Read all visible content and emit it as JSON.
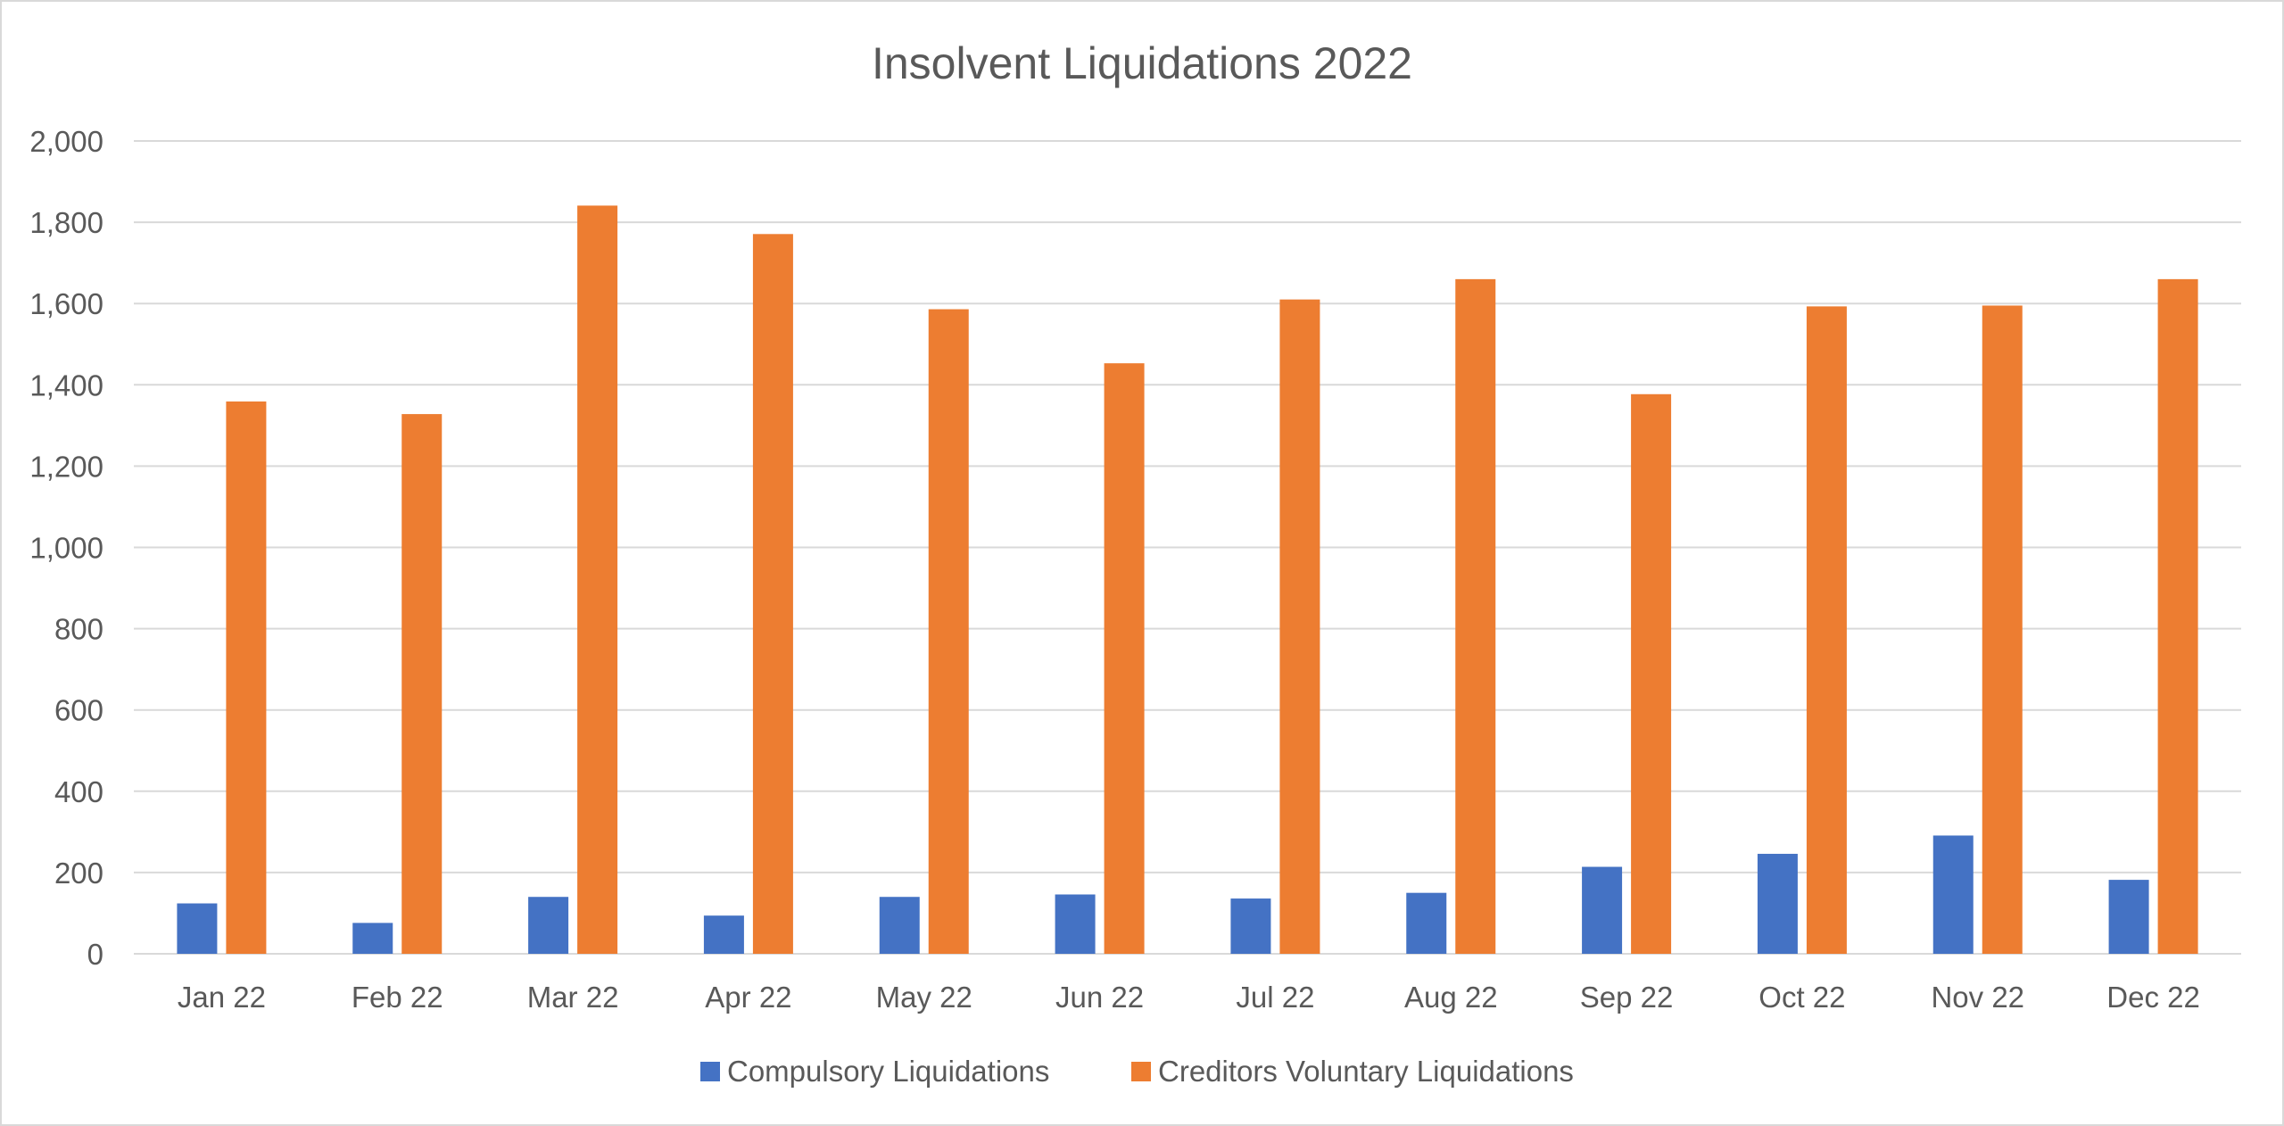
{
  "chart_data": {
    "type": "bar",
    "title": "Insolvent Liquidations 2022",
    "xlabel": "",
    "ylabel": "",
    "categories": [
      "Jan 22",
      "Feb 22",
      "Mar 22",
      "Apr 22",
      "May 22",
      "Jun 22",
      "Jul 22",
      "Aug 22",
      "Sep 22",
      "Oct 22",
      "Nov 22",
      "Dec 22"
    ],
    "series": [
      {
        "name": "Compulsory Liquidations",
        "color": "#4472c4",
        "values": [
          124,
          76,
          140,
          94,
          140,
          146,
          136,
          150,
          214,
          246,
          291,
          182
        ]
      },
      {
        "name": "Creditors Voluntary Liquidations",
        "color": "#ed7d31",
        "values": [
          1359,
          1328,
          1841,
          1771,
          1586,
          1453,
          1610,
          1660,
          1377,
          1593,
          1595,
          1660
        ]
      }
    ],
    "ylim": [
      0,
      2000
    ],
    "yticks": [
      0,
      200,
      400,
      600,
      800,
      1000,
      1200,
      1400,
      1600,
      1800,
      2000
    ],
    "ytick_labels": [
      "0",
      "200",
      "400",
      "600",
      "800",
      "1,000",
      "1,200",
      "1,400",
      "1,600",
      "1,800",
      "2,000"
    ],
    "grid": true,
    "legend_position": "bottom"
  }
}
